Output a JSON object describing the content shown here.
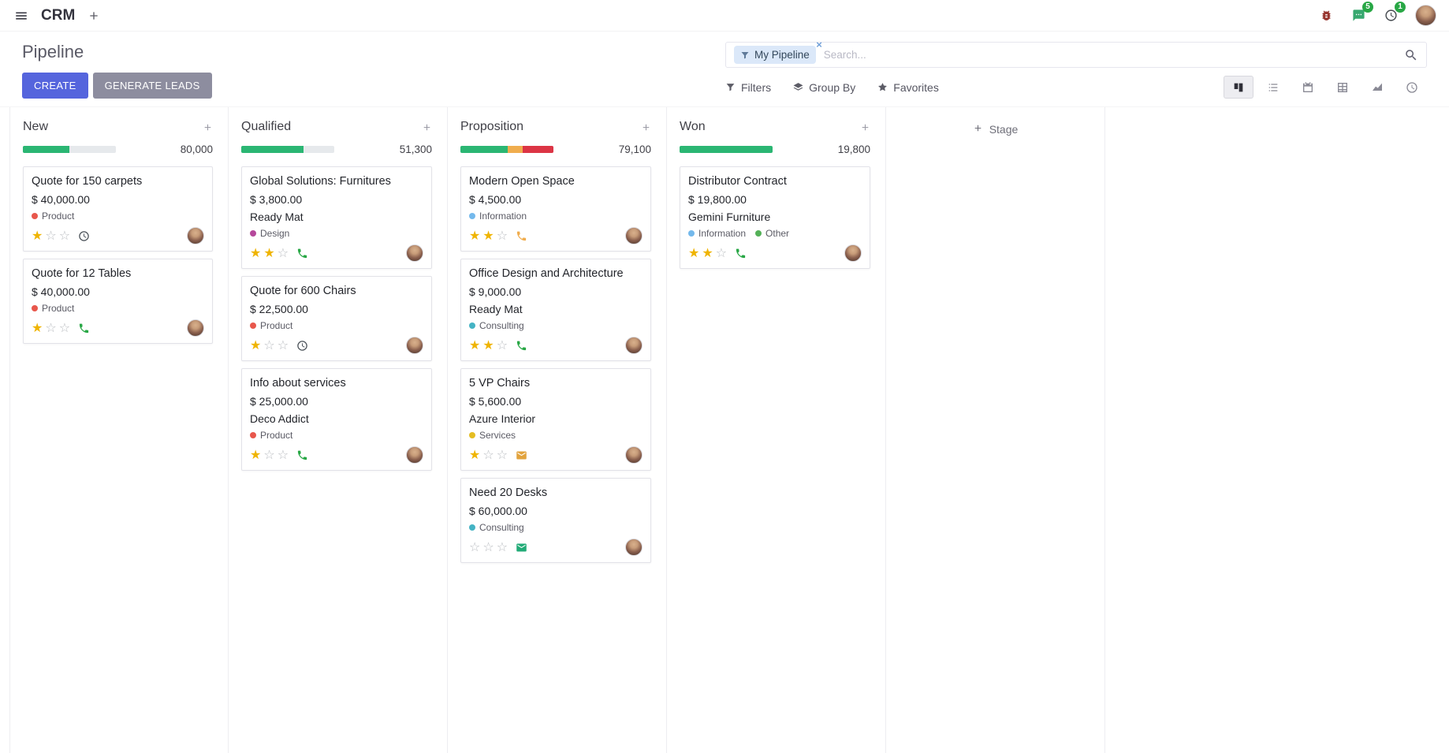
{
  "navbar": {
    "app_name": "CRM",
    "messages_badge": "5",
    "activities_badge": "1"
  },
  "page": {
    "title": "Pipeline"
  },
  "search": {
    "facet_label": "My Pipeline",
    "remove_symbol": "×",
    "placeholder": "Search..."
  },
  "actions": {
    "create": "CREATE",
    "generate_leads": "GENERATE LEADS"
  },
  "filter_menu": {
    "filters": "Filters",
    "group_by": "Group By",
    "favorites": "Favorites"
  },
  "view_switcher": [
    "kanban",
    "list",
    "calendar",
    "pivot",
    "graph",
    "activity"
  ],
  "theme": {
    "primary_button": "#5565dd",
    "secondary_button": "#8d8d9f",
    "star_filled": "#efb400",
    "badge": "#28a745",
    "facet_bg": "#dbe8f9",
    "progress_track": "#e6e9ec"
  },
  "board": {
    "add_stage_label": "Stage",
    "columns": [
      {
        "name": "New",
        "total": "80,000",
        "progress": [
          {
            "color": "#2bb673",
            "pct": 50
          }
        ],
        "cards": [
          {
            "title": "Quote for 150 carpets",
            "amount": "$ 40,000.00",
            "partner": null,
            "tags": [
              {
                "label": "Product",
                "color": "#e8574c"
              }
            ],
            "stars": 1,
            "activity": {
              "type": "clock",
              "color": "#495057"
            }
          },
          {
            "title": "Quote for 12 Tables",
            "amount": "$ 40,000.00",
            "partner": null,
            "tags": [
              {
                "label": "Product",
                "color": "#e8574c"
              }
            ],
            "stars": 1,
            "activity": {
              "type": "phone",
              "color": "#28a745"
            }
          }
        ]
      },
      {
        "name": "Qualified",
        "total": "51,300",
        "progress": [
          {
            "color": "#2bb673",
            "pct": 67
          }
        ],
        "cards": [
          {
            "title": "Global Solutions: Furnitures",
            "amount": "$ 3,800.00",
            "partner": "Ready Mat",
            "tags": [
              {
                "label": "Design",
                "color": "#b5489b"
              }
            ],
            "stars": 2,
            "activity": {
              "type": "phone",
              "color": "#28a745"
            }
          },
          {
            "title": "Quote for 600 Chairs",
            "amount": "$ 22,500.00",
            "partner": null,
            "tags": [
              {
                "label": "Product",
                "color": "#e8574c"
              }
            ],
            "stars": 1,
            "activity": {
              "type": "clock",
              "color": "#495057"
            }
          },
          {
            "title": "Info about services",
            "amount": "$ 25,000.00",
            "partner": "Deco Addict",
            "tags": [
              {
                "label": "Product",
                "color": "#e8574c"
              }
            ],
            "stars": 1,
            "activity": {
              "type": "phone",
              "color": "#28a745"
            }
          }
        ]
      },
      {
        "name": "Proposition",
        "total": "79,100",
        "progress": [
          {
            "color": "#2bb673",
            "pct": 51
          },
          {
            "color": "#f0ad4e",
            "pct": 16
          },
          {
            "color": "#dc3545",
            "pct": 33
          }
        ],
        "cards": [
          {
            "title": "Modern Open Space",
            "amount": "$ 4,500.00",
            "partner": null,
            "tags": [
              {
                "label": "Information",
                "color": "#74b9ec"
              }
            ],
            "stars": 2,
            "activity": {
              "type": "phone",
              "color": "#f0ad4e"
            }
          },
          {
            "title": "Office Design and Architecture",
            "amount": "$ 9,000.00",
            "partner": "Ready Mat",
            "tags": [
              {
                "label": "Consulting",
                "color": "#44b3c4"
              }
            ],
            "stars": 2,
            "activity": {
              "type": "phone",
              "color": "#28a745"
            }
          },
          {
            "title": "5 VP Chairs",
            "amount": "$ 5,600.00",
            "partner": "Azure Interior",
            "tags": [
              {
                "label": "Services",
                "color": "#e5bd22"
              }
            ],
            "stars": 1,
            "activity": {
              "type": "envelope",
              "color": "#e2a33d"
            }
          },
          {
            "title": "Need 20 Desks",
            "amount": "$ 60,000.00",
            "partner": null,
            "tags": [
              {
                "label": "Consulting",
                "color": "#44b3c4"
              }
            ],
            "stars": 0,
            "activity": {
              "type": "envelope",
              "color": "#22ab77"
            }
          }
        ]
      },
      {
        "name": "Won",
        "total": "19,800",
        "progress": [
          {
            "color": "#2bb673",
            "pct": 100
          }
        ],
        "cards": [
          {
            "title": "Distributor Contract",
            "amount": "$ 19,800.00",
            "partner": "Gemini Furniture",
            "tags": [
              {
                "label": "Information",
                "color": "#74b9ec"
              },
              {
                "label": "Other",
                "color": "#54b158"
              }
            ],
            "stars": 2,
            "activity": {
              "type": "phone",
              "color": "#28a745"
            }
          }
        ]
      }
    ]
  }
}
